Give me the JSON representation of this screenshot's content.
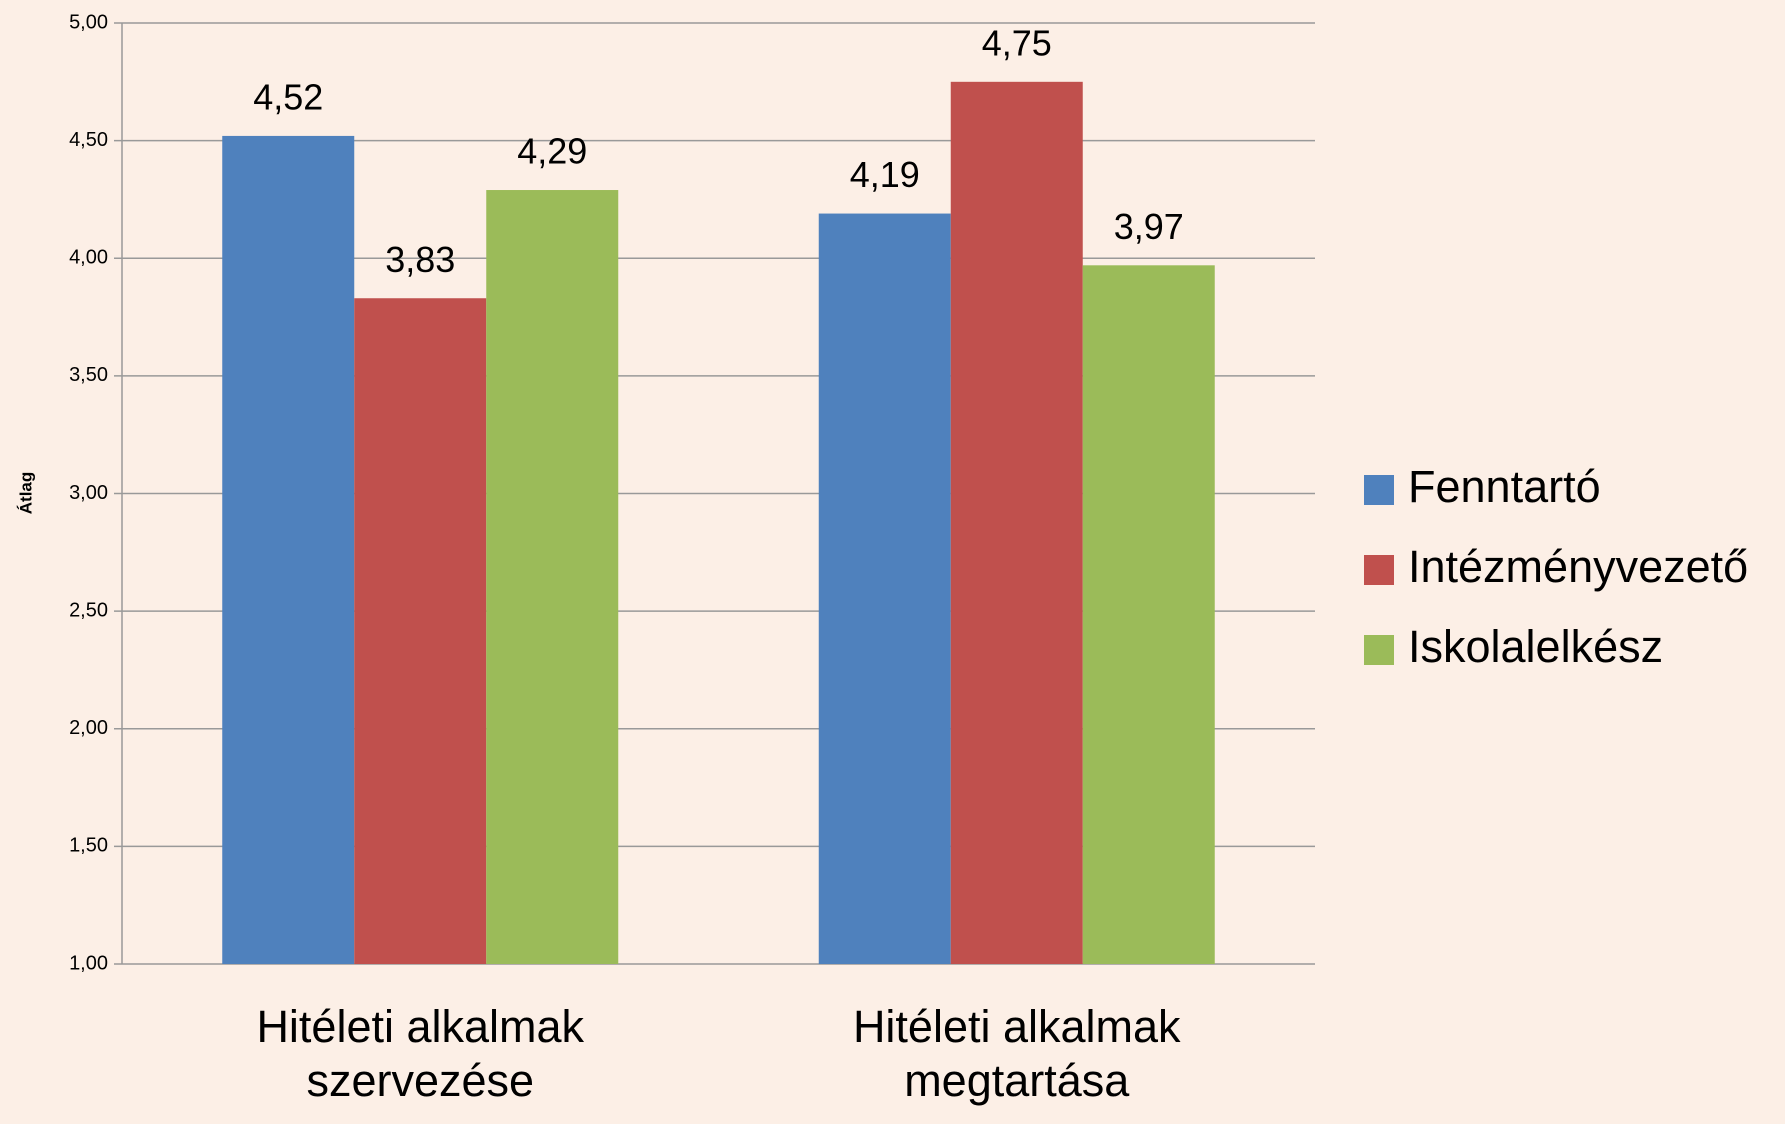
{
  "chart_data": {
    "type": "bar",
    "y_label": "Átlag",
    "categories": [
      "Hitéleti alkalmak szervezése",
      "Hitéleti alkalmak megtartása"
    ],
    "series": [
      {
        "name": "Fenntartó",
        "color": "#4f81bd",
        "values": [
          4.52,
          4.19
        ],
        "value_labels": [
          "4,52",
          "4,19"
        ]
      },
      {
        "name": "Intézményvezető",
        "color": "#c0504d",
        "values": [
          3.83,
          4.75
        ],
        "value_labels": [
          "3,83",
          "4,75"
        ]
      },
      {
        "name": "Iskolalelkész",
        "color": "#9bbb59",
        "values": [
          4.29,
          3.97
        ],
        "value_labels": [
          "4,29",
          "3,97"
        ]
      }
    ],
    "ylim": [
      1,
      5
    ],
    "yticks": [
      {
        "value": 1,
        "label": "1,00"
      },
      {
        "value": 1.5,
        "label": "1,50"
      },
      {
        "value": 2,
        "label": "2,00"
      },
      {
        "value": 2.5,
        "label": "2,50"
      },
      {
        "value": 3,
        "label": "3,00"
      },
      {
        "value": 3.5,
        "label": "3,50"
      },
      {
        "value": 4,
        "label": "4,00"
      },
      {
        "value": 4.5,
        "label": "4,50"
      },
      {
        "value": 5,
        "label": "5,00"
      }
    ],
    "grid": true,
    "legend": "right"
  }
}
